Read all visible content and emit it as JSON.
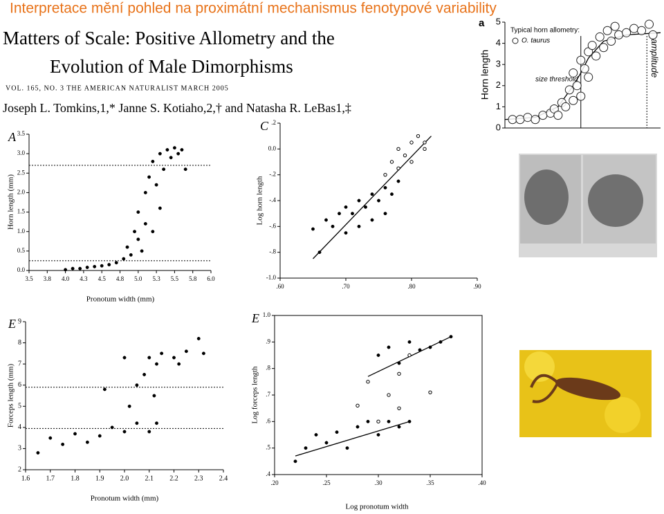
{
  "header": {
    "slide_title": "Interpretace mění pohled na proximátní mechanismus fenotypové variability",
    "paper_title_1": "Matters of Scale: Positive Allometry and the",
    "paper_title_2": "Evolution of Male Dimorphisms",
    "journal": "VOL. 165, NO. 3    THE AMERICAN NATURALIST    MARCH 2005",
    "authors": "Joseph L. Tomkins,1,* Janne S. Kotiaho,2,† and Natasha R. LeBas1,‡"
  },
  "chart_data": [
    {
      "type": "scatter",
      "panel_label": "a",
      "ylabel": "Horn length",
      "legend_title": "Typical horn allometry:",
      "xlim": [
        0,
        20.5
      ],
      "ylim": [
        0,
        5
      ],
      "yticks": [
        0,
        1,
        2,
        3,
        4,
        5
      ],
      "series": [
        {
          "name": "O. taurus",
          "marker": "open",
          "color": "#222222",
          "x": [
            1,
            2,
            3,
            4,
            5,
            6,
            6.5,
            7,
            7.5,
            8,
            8.5,
            9,
            9,
            9.5,
            10,
            10,
            10.5,
            11,
            11,
            11.5,
            12,
            12.5,
            13,
            13.5,
            14,
            14.5,
            15,
            16,
            17,
            18,
            19,
            19.5
          ],
          "y": [
            0.4,
            0.4,
            0.5,
            0.4,
            0.6,
            0.7,
            0.9,
            0.6,
            1.2,
            1.0,
            1.8,
            1.3,
            2.6,
            2.0,
            1.5,
            3.2,
            2.8,
            3.6,
            2.4,
            3.9,
            3.4,
            4.3,
            3.8,
            4.6,
            4.1,
            4.8,
            4.4,
            4.5,
            4.7,
            4.6,
            4.9,
            4.4
          ]
        }
      ],
      "fits": [
        {
          "x": [
            0,
            4,
            7,
            9,
            10,
            11,
            13,
            16,
            20.5
          ],
          "y": [
            0.4,
            0.5,
            1.0,
            2.0,
            2.6,
            3.3,
            4.1,
            4.4,
            4.5
          ]
        }
      ],
      "annotations": [
        {
          "text": "size threshold",
          "x": 10
        },
        {
          "text": "amplitude",
          "x": 18.7
        }
      ]
    },
    {
      "type": "scatter",
      "panel_label": "A",
      "xlabel": "Pronotum width (mm)",
      "ylabel": "Horn length (mm)",
      "xlim": [
        3.5,
        6.0
      ],
      "ylim": [
        0,
        3.5
      ],
      "xticks": [
        3.5,
        {
          "value": 3.75,
          "label": "3.8"
        },
        {
          "value": 4,
          "label": "4.0"
        },
        {
          "value": 4.25,
          "label": "4.3"
        },
        4.5,
        {
          "value": 4.75,
          "label": "4.8"
        },
        {
          "value": 5,
          "label": "5.0"
        },
        {
          "value": 5.25,
          "label": "5.3"
        },
        5.5,
        {
          "value": 5.75,
          "label": "5.8"
        },
        {
          "value": 6,
          "label": "6.0"
        }
      ],
      "yticks": [
        {
          "value": 0,
          "label": "0.0"
        },
        0.5,
        {
          "value": 1,
          "label": "1.0"
        },
        1.5,
        {
          "value": 2,
          "label": "2.0"
        },
        2.5,
        {
          "value": 3,
          "label": "3.0"
        },
        3.5
      ],
      "hlines": [
        2.7,
        0.25
      ],
      "series": [
        {
          "marker": "filled",
          "color": "#000000",
          "x": [
            4.0,
            4.1,
            4.2,
            4.3,
            4.4,
            4.5,
            4.6,
            4.7,
            4.8,
            4.85,
            4.9,
            4.95,
            5.0,
            5.0,
            5.05,
            5.1,
            5.1,
            5.15,
            5.2,
            5.2,
            5.25,
            5.3,
            5.3,
            5.35,
            5.4,
            5.45,
            5.5,
            5.55,
            5.6,
            5.65
          ],
          "y": [
            0.02,
            0.05,
            0.05,
            0.08,
            0.1,
            0.12,
            0.15,
            0.2,
            0.3,
            0.6,
            0.4,
            1.0,
            0.8,
            1.5,
            0.5,
            2.0,
            1.2,
            2.4,
            1.0,
            2.8,
            2.2,
            3.0,
            1.6,
            2.6,
            3.1,
            2.9,
            3.15,
            3.0,
            3.1,
            2.6
          ]
        }
      ]
    },
    {
      "type": "scatter",
      "panel_label": "C",
      "ylabel": "Log horn length",
      "xlim": [
        0.6,
        0.9
      ],
      "ylim": [
        -1.0,
        0.2
      ],
      "xticks": [
        {
          "value": 0.6,
          "label": ".60"
        },
        {
          "value": 0.7,
          "label": ".70"
        },
        {
          "value": 0.8,
          "label": ".80"
        },
        {
          "value": 0.9,
          "label": ".90"
        }
      ],
      "yticks": [
        {
          "value": -1.0,
          "label": "-1.0"
        },
        {
          "value": -0.8,
          "label": "-.8"
        },
        {
          "value": -0.6,
          "label": "-.6"
        },
        {
          "value": -0.4,
          "label": "-.4"
        },
        {
          "value": -0.2,
          "label": "-.2"
        },
        {
          "value": 0,
          "label": "0.0"
        },
        {
          "value": 0.2,
          "label": ".2"
        }
      ],
      "series": [
        {
          "marker": "filled",
          "color": "#000000",
          "x": [
            0.65,
            0.66,
            0.67,
            0.68,
            0.69,
            0.7,
            0.7,
            0.71,
            0.72,
            0.72,
            0.73,
            0.74,
            0.74,
            0.75,
            0.76,
            0.76,
            0.77,
            0.78
          ],
          "y": [
            -0.62,
            -0.8,
            -0.55,
            -0.6,
            -0.5,
            -0.45,
            -0.65,
            -0.5,
            -0.4,
            -0.6,
            -0.45,
            -0.35,
            -0.55,
            -0.4,
            -0.3,
            -0.5,
            -0.35,
            -0.25
          ]
        },
        {
          "marker": "open",
          "color": "#000000",
          "x": [
            0.76,
            0.77,
            0.78,
            0.78,
            0.79,
            0.8,
            0.8,
            0.81,
            0.82,
            0.82
          ],
          "y": [
            -0.2,
            -0.1,
            -0.15,
            0.0,
            -0.05,
            0.05,
            -0.1,
            0.1,
            0.05,
            0.0
          ]
        }
      ],
      "fits": [
        {
          "x": [
            0.65,
            0.83
          ],
          "y": [
            -0.85,
            0.1
          ]
        }
      ]
    },
    {
      "type": "scatter",
      "panel_label": "E",
      "xlabel": "Pronotum width (mm)",
      "ylabel": "Forceps length (mm)",
      "xlim": [
        1.6,
        2.4
      ],
      "ylim": [
        2,
        9
      ],
      "xticks": [
        1.6,
        1.7,
        1.8,
        1.9,
        {
          "value": 2,
          "label": "2.0"
        },
        2.1,
        2.2,
        2.3,
        2.4
      ],
      "yticks": [
        2,
        3,
        4,
        5,
        6,
        7,
        8,
        9
      ],
      "hlines": [
        5.9,
        3.95
      ],
      "series": [
        {
          "marker": "filled",
          "color": "#000000",
          "x": [
            1.65,
            1.7,
            1.75,
            1.8,
            1.85,
            1.9,
            1.92,
            1.95,
            2.0,
            2.0,
            2.02,
            2.05,
            2.05,
            2.08,
            2.1,
            2.1,
            2.12,
            2.13,
            2.13,
            2.15,
            2.2,
            2.22,
            2.25,
            2.3,
            2.32
          ],
          "y": [
            2.8,
            3.5,
            3.2,
            3.7,
            3.3,
            3.6,
            5.8,
            4.0,
            3.8,
            7.3,
            5.0,
            6.0,
            4.2,
            6.5,
            7.3,
            3.8,
            5.5,
            7.0,
            4.2,
            7.5,
            7.3,
            7.0,
            7.6,
            8.2,
            7.5
          ]
        }
      ]
    },
    {
      "type": "scatter",
      "panel_label": "E",
      "xlabel": "Log pronotum width",
      "ylabel": "Log forceps length",
      "xlim": [
        0.2,
        0.4
      ],
      "ylim": [
        0.4,
        1.0
      ],
      "xticks": [
        {
          "value": 0.2,
          "label": ".20"
        },
        {
          "value": 0.25,
          "label": ".25"
        },
        {
          "value": 0.3,
          "label": ".30"
        },
        {
          "value": 0.35,
          "label": ".35"
        },
        {
          "value": 0.4,
          "label": ".40"
        }
      ],
      "yticks": [
        {
          "value": 0.4,
          "label": ".4"
        },
        {
          "value": 0.5,
          "label": ".5"
        },
        {
          "value": 0.6,
          "label": ".6"
        },
        {
          "value": 0.7,
          "label": ".7"
        },
        {
          "value": 0.8,
          "label": ".8"
        },
        {
          "value": 0.9,
          "label": ".9"
        },
        {
          "value": 1.0,
          "label": "1.0"
        }
      ],
      "series": [
        {
          "marker": "filled",
          "color": "#000000",
          "x": [
            0.22,
            0.23,
            0.24,
            0.25,
            0.26,
            0.27,
            0.28,
            0.29,
            0.3,
            0.3,
            0.31,
            0.31,
            0.32,
            0.32,
            0.33,
            0.33,
            0.34,
            0.35,
            0.36,
            0.37
          ],
          "y": [
            0.45,
            0.5,
            0.55,
            0.52,
            0.56,
            0.5,
            0.58,
            0.6,
            0.55,
            0.85,
            0.88,
            0.6,
            0.82,
            0.58,
            0.9,
            0.6,
            0.87,
            0.88,
            0.9,
            0.92
          ]
        },
        {
          "marker": "open",
          "color": "#000000",
          "x": [
            0.28,
            0.29,
            0.3,
            0.31,
            0.32,
            0.32,
            0.33,
            0.35
          ],
          "y": [
            0.66,
            0.75,
            0.6,
            0.7,
            0.78,
            0.65,
            0.85,
            0.71
          ]
        }
      ],
      "fits": [
        {
          "x": [
            0.22,
            0.33
          ],
          "y": [
            0.47,
            0.6
          ]
        },
        {
          "x": [
            0.29,
            0.37
          ],
          "y": [
            0.77,
            0.92
          ]
        }
      ]
    }
  ]
}
